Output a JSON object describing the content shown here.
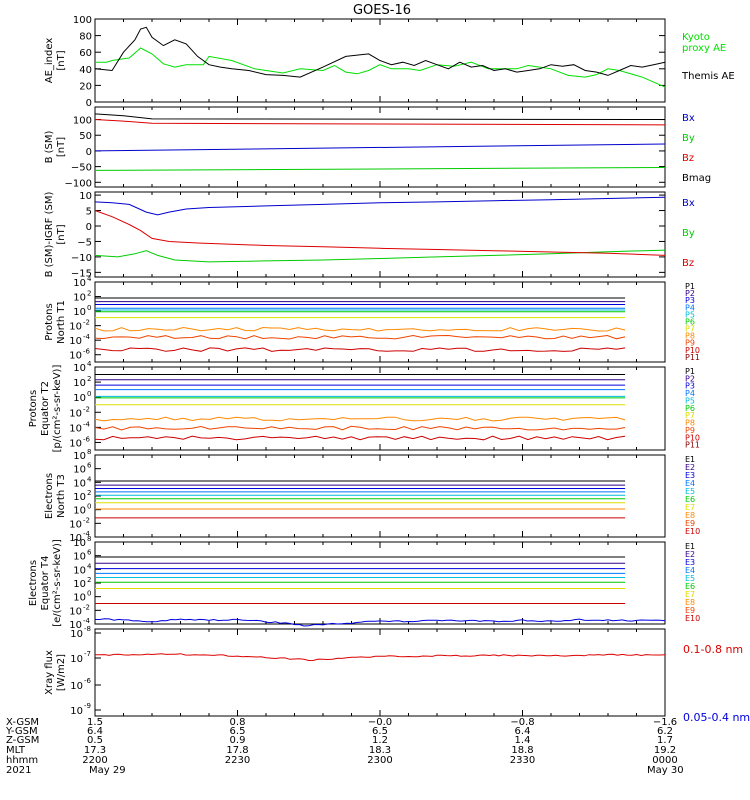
{
  "title": "GOES-16",
  "chart_data": [
    {
      "id": "ae",
      "type": "line",
      "ylabel": [
        "AE_index",
        "[nT]"
      ],
      "ylim": [
        0,
        100
      ],
      "yticks": [
        0,
        20,
        40,
        60,
        80,
        100
      ],
      "series": [
        {
          "name": "Kyoto proxy AE",
          "label_lines": [
            "Kyoto",
            "proxy AE"
          ],
          "color": "#00e000",
          "x": [
            0,
            2,
            3,
            5,
            6,
            8,
            10,
            12,
            14,
            16,
            19,
            20,
            24,
            28,
            30,
            33,
            36,
            40,
            42,
            44,
            46,
            48,
            50,
            52,
            55,
            57,
            60,
            63,
            66,
            69,
            72,
            74,
            76,
            78,
            80,
            83,
            86,
            88,
            90,
            92,
            96,
            100
          ],
          "y": [
            48,
            48,
            50,
            52,
            53,
            65,
            58,
            46,
            42,
            45,
            45,
            55,
            50,
            40,
            38,
            35,
            40,
            38,
            44,
            36,
            34,
            38,
            45,
            40,
            40,
            38,
            45,
            43,
            48,
            40,
            40,
            40,
            44,
            42,
            40,
            32,
            30,
            33,
            40,
            38,
            30,
            18
          ]
        },
        {
          "name": "Themis AE",
          "label_lines": [
            "Themis AE"
          ],
          "color": "#000000",
          "x": [
            0,
            3,
            5,
            7,
            8,
            9,
            10,
            12,
            14,
            16,
            18,
            20,
            22,
            24,
            27,
            30,
            33,
            36,
            40,
            44,
            48,
            50,
            52,
            54,
            56,
            58,
            60,
            62,
            64,
            66,
            68,
            70,
            72,
            74,
            76,
            78,
            80,
            82,
            84,
            86,
            88,
            90,
            92,
            94,
            96,
            98,
            100
          ],
          "y": [
            40,
            38,
            60,
            75,
            88,
            90,
            78,
            68,
            75,
            70,
            55,
            45,
            42,
            40,
            38,
            33,
            32,
            30,
            42,
            55,
            58,
            50,
            45,
            48,
            44,
            50,
            45,
            40,
            48,
            42,
            44,
            38,
            40,
            36,
            38,
            40,
            45,
            43,
            45,
            38,
            36,
            32,
            38,
            44,
            42,
            45,
            48
          ]
        }
      ]
    },
    {
      "id": "bsm",
      "type": "line",
      "ylabel": [
        "B (SM)",
        "[nT]"
      ],
      "ylim": [
        -115,
        140
      ],
      "yticks": [
        -100,
        -50,
        0,
        50,
        100
      ],
      "series": [
        {
          "name": "Bx",
          "color": "#0000cc",
          "x": [
            0,
            100
          ],
          "y": [
            0,
            22
          ]
        },
        {
          "name": "By",
          "color": "#00cc00",
          "x": [
            0,
            100
          ],
          "y": [
            -62,
            -53
          ]
        },
        {
          "name": "Bz",
          "color": "#dd0000",
          "x": [
            0,
            5,
            10,
            100
          ],
          "y": [
            100,
            95,
            88,
            83
          ]
        },
        {
          "name": "Bmag",
          "color": "#000000",
          "x": [
            0,
            5,
            10,
            100
          ],
          "y": [
            118,
            112,
            102,
            100
          ]
        }
      ]
    },
    {
      "id": "bigrf",
      "type": "line",
      "ylabel": [
        "B (SM)-IGRF (SM)",
        "[nT]"
      ],
      "ylim": [
        -16.5,
        11
      ],
      "yticks": [
        -15,
        -10,
        -5,
        0,
        5,
        10
      ],
      "series": [
        {
          "name": "Bx",
          "color": "#0000cc",
          "x": [
            0,
            3,
            6,
            9,
            11,
            13,
            16,
            20,
            30,
            40,
            50,
            60,
            70,
            80,
            90,
            100
          ],
          "y": [
            7.8,
            7.5,
            7.0,
            4.5,
            3.6,
            4.5,
            5.5,
            6.0,
            6.5,
            7.0,
            7.5,
            7.8,
            8.2,
            8.5,
            8.9,
            9.3
          ]
        },
        {
          "name": "By",
          "color": "#00cc00",
          "x": [
            0,
            4,
            7,
            9,
            11,
            14,
            20,
            30,
            40,
            50,
            60,
            70,
            80,
            90,
            100
          ],
          "y": [
            -9.5,
            -10,
            -9,
            -8,
            -9.5,
            -11,
            -11.6,
            -11.3,
            -11.0,
            -10.5,
            -10.0,
            -9.5,
            -9.0,
            -8.3,
            -7.8
          ]
        },
        {
          "name": "Bz",
          "color": "#dd0000",
          "x": [
            0,
            3,
            6,
            8,
            10,
            13,
            18,
            30,
            40,
            50,
            60,
            70,
            80,
            90,
            100
          ],
          "y": [
            5.0,
            3.0,
            0.5,
            -1.5,
            -4.0,
            -5.0,
            -5.5,
            -6.3,
            -6.7,
            -7.2,
            -7.6,
            -8.0,
            -8.4,
            -8.8,
            -9.5
          ]
        }
      ]
    },
    {
      "id": "pn1",
      "type": "line",
      "log": true,
      "ylabel": [
        "Protons",
        "North T1"
      ],
      "ylim": [
        -7,
        4
      ],
      "ytick_exp": [
        4,
        2,
        0,
        -2,
        -4,
        -6
      ],
      "series": [
        {
          "name": "P1",
          "color": "#000000",
          "y": 1.8
        },
        {
          "name": "P2",
          "color": "#330088",
          "y": 1.3
        },
        {
          "name": "P3",
          "color": "#0000dd",
          "y": 0.9
        },
        {
          "name": "P4",
          "color": "#0077ff",
          "y": 0.4
        },
        {
          "name": "P5",
          "color": "#00bbdd",
          "y": 0.15
        },
        {
          "name": "P6",
          "color": "#00cc00",
          "y": -0.1
        },
        {
          "name": "P7",
          "color": "#dddd00",
          "y": -0.9
        },
        {
          "name": "P8",
          "color": "#ff8800",
          "y": -2.5
        },
        {
          "name": "P9",
          "color": "#ee4400",
          "y": -3.6
        },
        {
          "name": "P10",
          "color": "#cc0000",
          "y": -5.3
        },
        {
          "name": "P11",
          "color": "#880000",
          "y": null
        }
      ]
    },
    {
      "id": "pe2",
      "type": "line",
      "log": true,
      "ylabel": [
        "Protons",
        "Equator T2",
        "[p/(cm²-s-sr-keV)]"
      ],
      "ylim": [
        -7,
        4
      ],
      "ytick_exp": [
        4,
        2,
        0,
        -2,
        -4,
        -6
      ],
      "series": [
        {
          "name": "P1",
          "color": "#000000",
          "y": 3.0
        },
        {
          "name": "P2",
          "color": "#330088",
          "y": 2.3
        },
        {
          "name": "P3",
          "color": "#0000dd",
          "y": 1.6
        },
        {
          "name": "P4",
          "color": "#0077ff",
          "y": 1.0
        },
        {
          "name": "P5",
          "color": "#00bbdd",
          "y": 0.1
        },
        {
          "name": "P6",
          "color": "#00cc00",
          "y": -0.1
        },
        {
          "name": "P7",
          "color": "#dddd00",
          "y": -1.0
        },
        {
          "name": "P8",
          "color": "#ff8800",
          "y": -2.9
        },
        {
          "name": "P9",
          "color": "#ee4400",
          "y": -4.1
        },
        {
          "name": "P10",
          "color": "#cc0000",
          "y": -5.4
        },
        {
          "name": "P11",
          "color": "#880000",
          "y": null
        }
      ]
    },
    {
      "id": "en3",
      "type": "line",
      "log": true,
      "ylabel": [
        "Electrons",
        "North T3"
      ],
      "ylim": [
        -4,
        8
      ],
      "ytick_exp": [
        8,
        6,
        4,
        2,
        0,
        -2,
        -4
      ],
      "series": [
        {
          "name": "E1",
          "color": "#000000",
          "y": 4.2
        },
        {
          "name": "E2",
          "color": "#330088",
          "y": 3.6
        },
        {
          "name": "E3",
          "color": "#0000dd",
          "y": 3.1
        },
        {
          "name": "E4",
          "color": "#0077ff",
          "y": 2.6
        },
        {
          "name": "E5",
          "color": "#00bbdd",
          "y": 2.1
        },
        {
          "name": "E6",
          "color": "#00cc00",
          "y": 1.6
        },
        {
          "name": "E7",
          "color": "#dddd00",
          "y": 1.0
        },
        {
          "name": "E8",
          "color": "#ff8800",
          "y": 0.1
        },
        {
          "name": "E9",
          "color": "#ee4400",
          "y": null
        },
        {
          "name": "E10",
          "color": "#cc0000",
          "y": -1.2
        }
      ]
    },
    {
      "id": "ee4",
      "type": "line",
      "log": true,
      "ylabel": [
        "Electrons",
        "Equator T4",
        "[e/(cm²-s-sr-keV)]"
      ],
      "ylim": [
        -4,
        8
      ],
      "ytick_exp": [
        8,
        6,
        4,
        2,
        0,
        -2,
        -4
      ],
      "series": [
        {
          "name": "E1",
          "color": "#000000",
          "y": 5.8
        },
        {
          "name": "E2",
          "color": "#330088",
          "y": 4.9
        },
        {
          "name": "E3",
          "color": "#0000dd",
          "y": 4.1
        },
        {
          "name": "E4",
          "color": "#0077ff",
          "y": 3.4
        },
        {
          "name": "E5",
          "color": "#00bbdd",
          "y": 2.8
        },
        {
          "name": "E6",
          "color": "#00cc00",
          "y": 2.1
        },
        {
          "name": "E7",
          "color": "#dddd00",
          "y": 1.2
        },
        {
          "name": "E8",
          "color": "#ff8800",
          "y": null
        },
        {
          "name": "E9",
          "color": "#ee4400",
          "y": null
        },
        {
          "name": "E10",
          "color": "#cc0000",
          "y": -1.0
        }
      ]
    },
    {
      "id": "xray",
      "type": "line",
      "log": true,
      "ylabel": [
        "Xray flux",
        "[W/m2]"
      ],
      "ylim": [
        -9,
        -8
      ],
      "ytick_exp": [
        -8,
        -7,
        -6,
        -9
      ],
      "series": [
        {
          "name": "0.1-0.8 nm",
          "color": "#dd0000",
          "x": [
            0,
            10,
            20,
            28,
            32,
            38,
            40,
            45,
            50,
            60,
            70,
            80,
            90,
            100
          ],
          "y": [
            -7.1,
            -7.15,
            -7.12,
            -7.05,
            -7.0,
            -6.92,
            -6.95,
            -7.02,
            -7.05,
            -7.08,
            -7.1,
            -7.08,
            -7.12,
            -7.1
          ]
        },
        {
          "name": "0.05-0.4 nm",
          "color": "#0000dd",
          "x": [
            0,
            5,
            10,
            15,
            20,
            25,
            30,
            33,
            37,
            40,
            45,
            50,
            55,
            60,
            65,
            70,
            75,
            80,
            85,
            90,
            95,
            100
          ],
          "y": [
            -8.45,
            -8.4,
            -8.35,
            -8.45,
            -8.4,
            -8.42,
            -8.35,
            -8.3,
            -8.2,
            -8.25,
            -8.3,
            -8.38,
            -8.35,
            -8.4,
            -8.38,
            -8.35,
            -8.4,
            -8.36,
            -8.42,
            -8.4,
            -8.38,
            -8.4
          ]
        }
      ]
    }
  ],
  "xaxis": {
    "row_labels": [
      "X-GSM",
      "Y-GSM",
      "Z-GSM",
      "MLT",
      "hhmm",
      "2021"
    ],
    "columns": [
      [
        "1.5",
        "6.4",
        "0.5",
        "17.3",
        "2200",
        "May 29"
      ],
      [
        "0.8",
        "6.5",
        "0.9",
        "17.8",
        "2230",
        ""
      ],
      [
        "−0.0",
        "6.5",
        "1.2",
        "18.3",
        "2300",
        ""
      ],
      [
        "−0.8",
        "6.4",
        "1.4",
        "18.8",
        "2330",
        ""
      ],
      [
        "−1.6",
        "6.2",
        "1.7",
        "19.2",
        "0000",
        "May 30"
      ]
    ]
  }
}
